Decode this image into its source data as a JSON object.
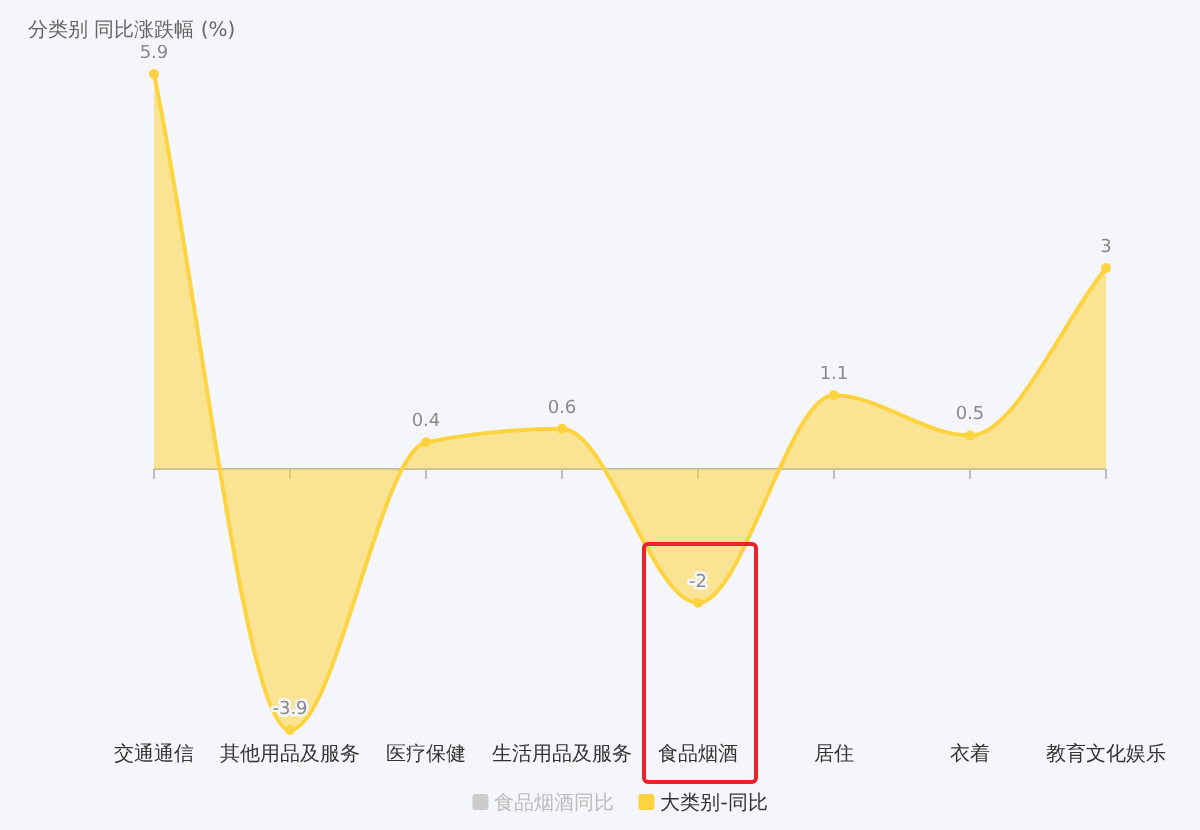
{
  "chart_data": {
    "type": "area",
    "ylabel": "分类别 同比涨跌幅 (%)",
    "categories": [
      "交通通信",
      "其他用品及服务",
      "医疗保健",
      "生活用品及服务",
      "食品烟酒",
      "居住",
      "衣着",
      "教育文化娱乐"
    ],
    "series": [
      {
        "name": "食品烟酒同比",
        "color": "#cccccc",
        "values": [
          null,
          null,
          null,
          null,
          null,
          null,
          null,
          null
        ]
      },
      {
        "name": "大类别-同比",
        "color": "#fdd440",
        "values": [
          5.9,
          -3.9,
          0.4,
          0.6,
          -2,
          1.1,
          0.5,
          3
        ]
      }
    ],
    "data_labels": true,
    "legend": "bottom",
    "marker": "circle"
  }
}
